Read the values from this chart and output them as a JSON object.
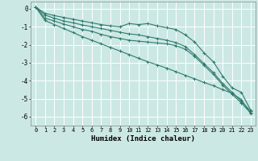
{
  "title": "",
  "xlabel": "Humidex (Indice chaleur)",
  "ylabel": "",
  "background_color": "#cce8e4",
  "grid_color": "#ffffff",
  "line_color": "#2d7a6e",
  "xlim": [
    -0.5,
    23.5
  ],
  "ylim": [
    -6.5,
    0.4
  ],
  "x": [
    0,
    1,
    2,
    3,
    4,
    5,
    6,
    7,
    8,
    9,
    10,
    11,
    12,
    13,
    14,
    15,
    16,
    17,
    18,
    19,
    20,
    21,
    22,
    23
  ],
  "series": [
    [
      0.1,
      -0.25,
      -0.38,
      -0.48,
      -0.58,
      -0.68,
      -0.78,
      -0.88,
      -0.95,
      -1.0,
      -0.82,
      -0.88,
      -0.82,
      -0.95,
      -1.05,
      -1.15,
      -1.45,
      -1.85,
      -2.45,
      -2.95,
      -3.75,
      -4.4,
      -4.65,
      -5.65
    ],
    [
      0.1,
      -0.35,
      -0.52,
      -0.68,
      -0.78,
      -0.9,
      -1.0,
      -1.1,
      -1.2,
      -1.3,
      -1.4,
      -1.45,
      -1.55,
      -1.65,
      -1.75,
      -1.88,
      -2.1,
      -2.55,
      -3.05,
      -3.55,
      -4.15,
      -4.65,
      -5.15,
      -5.7
    ],
    [
      0.1,
      -0.52,
      -0.68,
      -0.85,
      -1.0,
      -1.15,
      -1.25,
      -1.42,
      -1.55,
      -1.65,
      -1.75,
      -1.8,
      -1.85,
      -1.9,
      -1.95,
      -2.05,
      -2.25,
      -2.65,
      -3.15,
      -3.65,
      -4.25,
      -4.75,
      -5.25,
      -5.8
    ],
    [
      0.1,
      -0.65,
      -0.88,
      -1.1,
      -1.32,
      -1.55,
      -1.75,
      -1.95,
      -2.15,
      -2.35,
      -2.55,
      -2.75,
      -2.95,
      -3.12,
      -3.3,
      -3.5,
      -3.7,
      -3.9,
      -4.1,
      -4.28,
      -4.5,
      -4.7,
      -5.05,
      -5.85
    ]
  ],
  "yticks": [
    0,
    -1,
    -2,
    -3,
    -4,
    -5,
    -6
  ],
  "marker": "+",
  "markersize": 3,
  "linewidth": 0.8
}
